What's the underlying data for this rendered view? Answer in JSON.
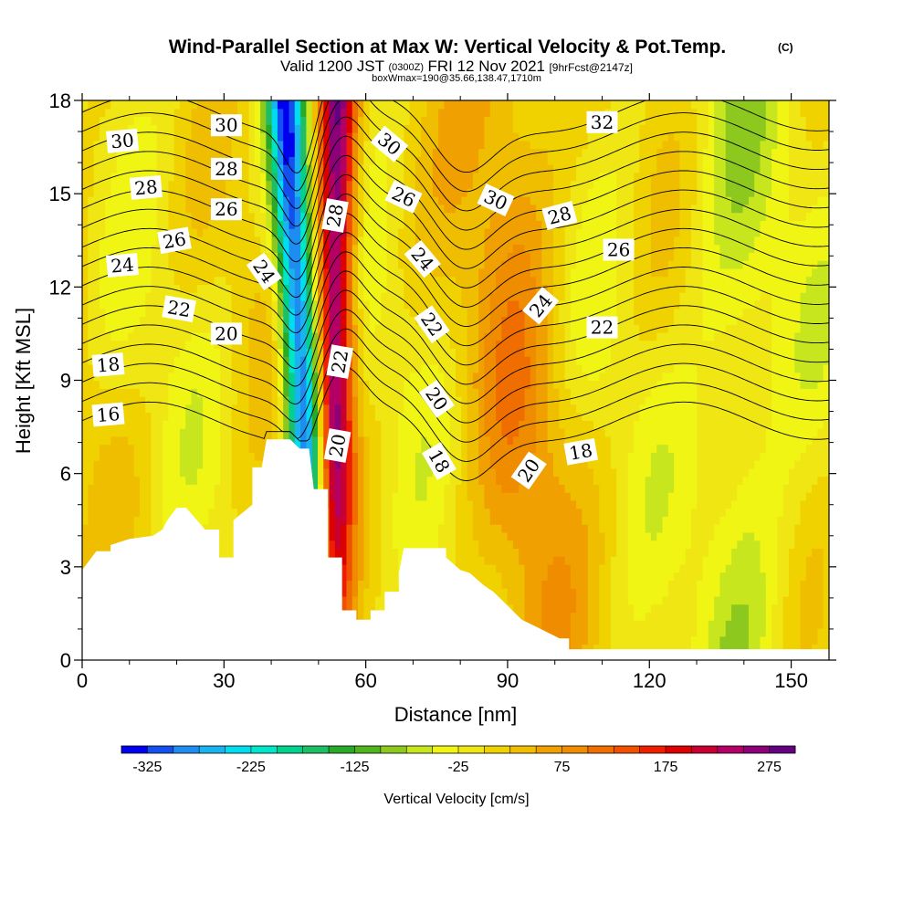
{
  "title": {
    "main": "Wind-Parallel Section at Max W: Vertical Velocity & Pot.Temp.",
    "copyright": "(C)",
    "valid_prefix": "Valid 1200 JST",
    "valid_utc": "(0300Z)",
    "valid_date": "FRI 12 Nov 2021",
    "forecast": "[9hrFcst@2147z]",
    "box": "boxWmax=190@35.66,138.47,1710m"
  },
  "chart_data": {
    "type": "heatmap",
    "xlabel": "Distance [nm]",
    "ylabel": "Height [Kft MSL]",
    "xlim": [
      0,
      158
    ],
    "ylim": [
      0,
      18
    ],
    "x_ticks": [
      0,
      30,
      60,
      90,
      120,
      150
    ],
    "y_ticks": [
      0,
      3,
      6,
      9,
      12,
      15,
      18
    ],
    "colorbar": {
      "label": "Vertical Velocity [cm/s]",
      "tick_labels": [
        "-325",
        "-225",
        "-125",
        "-25",
        "75",
        "175",
        "275"
      ],
      "tick_values": [
        -325,
        -225,
        -125,
        -25,
        75,
        175,
        275
      ],
      "range": [
        -350,
        300
      ],
      "step": 25,
      "colors": [
        "#0000f0",
        "#1450f0",
        "#1e8cf0",
        "#19b4f0",
        "#00dcf0",
        "#00e6c8",
        "#00d28c",
        "#1ebe64",
        "#28aa28",
        "#50b41e",
        "#8cc81e",
        "#c8e61e",
        "#f0f514",
        "#f0e614",
        "#f0d200",
        "#f0be00",
        "#f0a000",
        "#f08c00",
        "#f06e00",
        "#f05000",
        "#f01e00",
        "#dc0000",
        "#c80032",
        "#b40064",
        "#8c0078",
        "#640082"
      ]
    },
    "terrain": [
      [
        0,
        2.9
      ],
      [
        3,
        3.5
      ],
      [
        6,
        3.5
      ],
      [
        6,
        3.7
      ],
      [
        10,
        3.9
      ],
      [
        15,
        4.0
      ],
      [
        17,
        4.2
      ],
      [
        18,
        4.5
      ],
      [
        20,
        4.9
      ],
      [
        22,
        4.9
      ],
      [
        26,
        4.2
      ],
      [
        29,
        4.2
      ],
      [
        29,
        3.3
      ],
      [
        32,
        3.3
      ],
      [
        32,
        4.5
      ],
      [
        36,
        5.0
      ],
      [
        36,
        6.2
      ],
      [
        38,
        6.2
      ],
      [
        39,
        7.1
      ],
      [
        44,
        7.1
      ],
      [
        46,
        6.8
      ],
      [
        48,
        6.8
      ],
      [
        49,
        5.5
      ],
      [
        52,
        5.5
      ],
      [
        52,
        3.3
      ],
      [
        55,
        3.3
      ],
      [
        55,
        1.6
      ],
      [
        58,
        1.6
      ],
      [
        58,
        1.3
      ],
      [
        61,
        1.3
      ],
      [
        61,
        1.6
      ],
      [
        64,
        1.6
      ],
      [
        64,
        2.2
      ],
      [
        67,
        2.2
      ],
      [
        67,
        2.8
      ],
      [
        68,
        3.6
      ],
      [
        77,
        3.6
      ],
      [
        77,
        3.3
      ],
      [
        80,
        2.9
      ],
      [
        82,
        2.8
      ],
      [
        85,
        2.4
      ],
      [
        87,
        2.2
      ],
      [
        89,
        1.9
      ],
      [
        91,
        1.6
      ],
      [
        93,
        1.3
      ],
      [
        97,
        1.0
      ],
      [
        101,
        0.7
      ],
      [
        103,
        0.7
      ],
      [
        103,
        0.35
      ],
      [
        158,
        0.35
      ]
    ],
    "vertical_velocity_features": [
      {
        "name": "downdraft",
        "x_at_surface": 50,
        "x_at_top": 43,
        "w_min": -325
      },
      {
        "name": "updraft",
        "x_at_surface": 53,
        "x_at_top": 54,
        "w_max": 275
      },
      {
        "name": "updraft",
        "x_at_surface": 96,
        "x_at_top": 89,
        "w_max": 75
      },
      {
        "name": "downdraft",
        "x_at_surface": 140,
        "x_at_top": 138,
        "w_min": -75
      }
    ],
    "theta_contours": {
      "units": "C",
      "levels": [
        16,
        17,
        18,
        19,
        20,
        21,
        22,
        23,
        24,
        25,
        26,
        27,
        28,
        29,
        30,
        31,
        32
      ],
      "labels": [
        {
          "text": "30",
          "x": 8.5,
          "y": 16.7,
          "angle": -5
        },
        {
          "text": "28",
          "x": 13.5,
          "y": 15.2,
          "angle": -5
        },
        {
          "text": "26",
          "x": 19.5,
          "y": 13.5,
          "angle": -10
        },
        {
          "text": "24",
          "x": 8.5,
          "y": 12.7,
          "angle": -5
        },
        {
          "text": "22",
          "x": 20.5,
          "y": 11.3,
          "angle": 10
        },
        {
          "text": "18",
          "x": 5.5,
          "y": 9.5,
          "angle": -5
        },
        {
          "text": "16",
          "x": 5.5,
          "y": 7.9,
          "angle": -5
        },
        {
          "text": "30",
          "x": 30.5,
          "y": 17.2,
          "angle": 0
        },
        {
          "text": "28",
          "x": 30.5,
          "y": 15.8,
          "angle": 0
        },
        {
          "text": "26",
          "x": 30.5,
          "y": 14.5,
          "angle": 0
        },
        {
          "text": "20",
          "x": 30.5,
          "y": 10.5,
          "angle": 0
        },
        {
          "text": "24",
          "x": 38.5,
          "y": 12.5,
          "angle": 55
        },
        {
          "text": "28",
          "x": 53.5,
          "y": 14.3,
          "angle": -80
        },
        {
          "text": "22",
          "x": 54.5,
          "y": 9.6,
          "angle": -80
        },
        {
          "text": "20",
          "x": 54,
          "y": 6.9,
          "angle": -80
        },
        {
          "text": "30",
          "x": 65,
          "y": 16.6,
          "angle": 40
        },
        {
          "text": "26",
          "x": 68,
          "y": 14.9,
          "angle": 25
        },
        {
          "text": "24",
          "x": 72,
          "y": 12.9,
          "angle": 50
        },
        {
          "text": "22",
          "x": 74,
          "y": 10.8,
          "angle": 55
        },
        {
          "text": "20",
          "x": 75,
          "y": 8.4,
          "angle": 55
        },
        {
          "text": "18",
          "x": 75.5,
          "y": 6.4,
          "angle": 60
        },
        {
          "text": "30",
          "x": 87.5,
          "y": 14.8,
          "angle": 25
        },
        {
          "text": "28",
          "x": 101,
          "y": 14.3,
          "angle": -15
        },
        {
          "text": "24",
          "x": 97,
          "y": 11.4,
          "angle": -50
        },
        {
          "text": "20",
          "x": 94.5,
          "y": 6.1,
          "angle": -55
        },
        {
          "text": "32",
          "x": 110,
          "y": 17.3,
          "angle": 0
        },
        {
          "text": "26",
          "x": 113.5,
          "y": 13.2,
          "angle": 0
        },
        {
          "text": "22",
          "x": 110,
          "y": 10.7,
          "angle": 0
        },
        {
          "text": "18",
          "x": 105.5,
          "y": 6.7,
          "angle": -10
        }
      ]
    }
  }
}
